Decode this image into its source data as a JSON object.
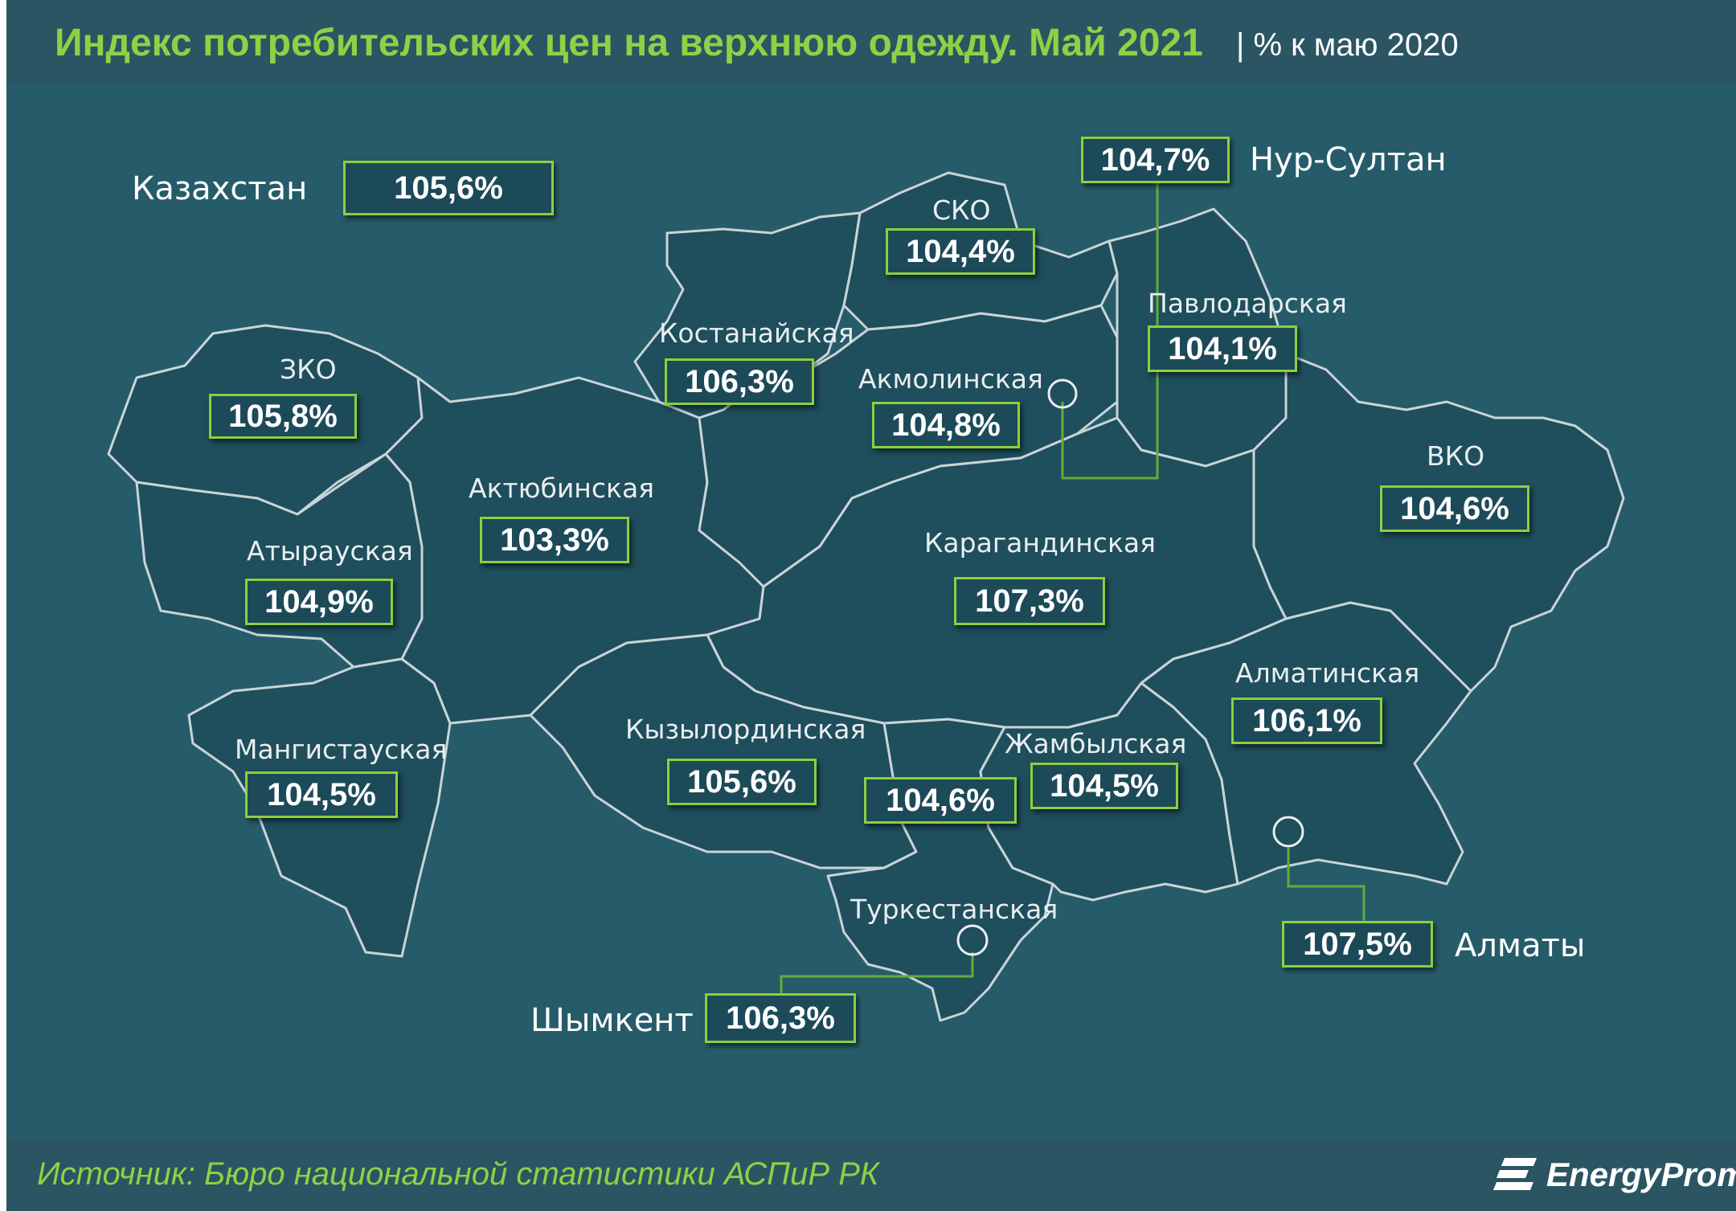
{
  "title": "Индекс потребительских цен на верхнюю одежду. Май 2021",
  "subtitle": "| % к маю 2020",
  "source": "Источник: Бюро национальной  статистики АСПиР РК",
  "logo": "EnergyProm",
  "colors": {
    "accent": "#8fd146",
    "background": "#265c69",
    "border": "#c9d4d8"
  },
  "country": {
    "label": "Казахстан",
    "value": "105,6%"
  },
  "regions": {
    "zko": {
      "name": "ЗКО",
      "value": "105,8%"
    },
    "aktobe": {
      "name": "Актюбинская",
      "value": "103,3%"
    },
    "atyrau": {
      "name": "Атырауская",
      "value": "104,9%"
    },
    "mangystau": {
      "name": "Мангистауская",
      "value": "104,5%"
    },
    "kostanay": {
      "name": "Костанайская",
      "value": "106,3%"
    },
    "sko": {
      "name": "СКО",
      "value": "104,4%"
    },
    "akmola": {
      "name": "Акмолинская",
      "value": "104,8%"
    },
    "pavlodar": {
      "name": "Павлодарская",
      "value": "104,1%"
    },
    "vko": {
      "name": "ВКО",
      "value": "104,6%"
    },
    "karaganda": {
      "name": "Карагандинская",
      "value": "107,3%"
    },
    "kyzylorda": {
      "name": "Кызылординская",
      "value": "105,6%"
    },
    "turkestan": {
      "name": "Туркестанская",
      "value": "104,6%"
    },
    "zhambyl": {
      "name": "Жамбылская",
      "value": "104,5%"
    },
    "almaty_reg": {
      "name": "Алматинская",
      "value": "106,1%"
    }
  },
  "cities": {
    "nur_sultan": {
      "name": "Нур-Султан",
      "value": "104,7%"
    },
    "almaty": {
      "name": "Алматы",
      "value": "107,5%"
    },
    "shymkent": {
      "name": "Шымкент",
      "value": "106,3%"
    }
  }
}
